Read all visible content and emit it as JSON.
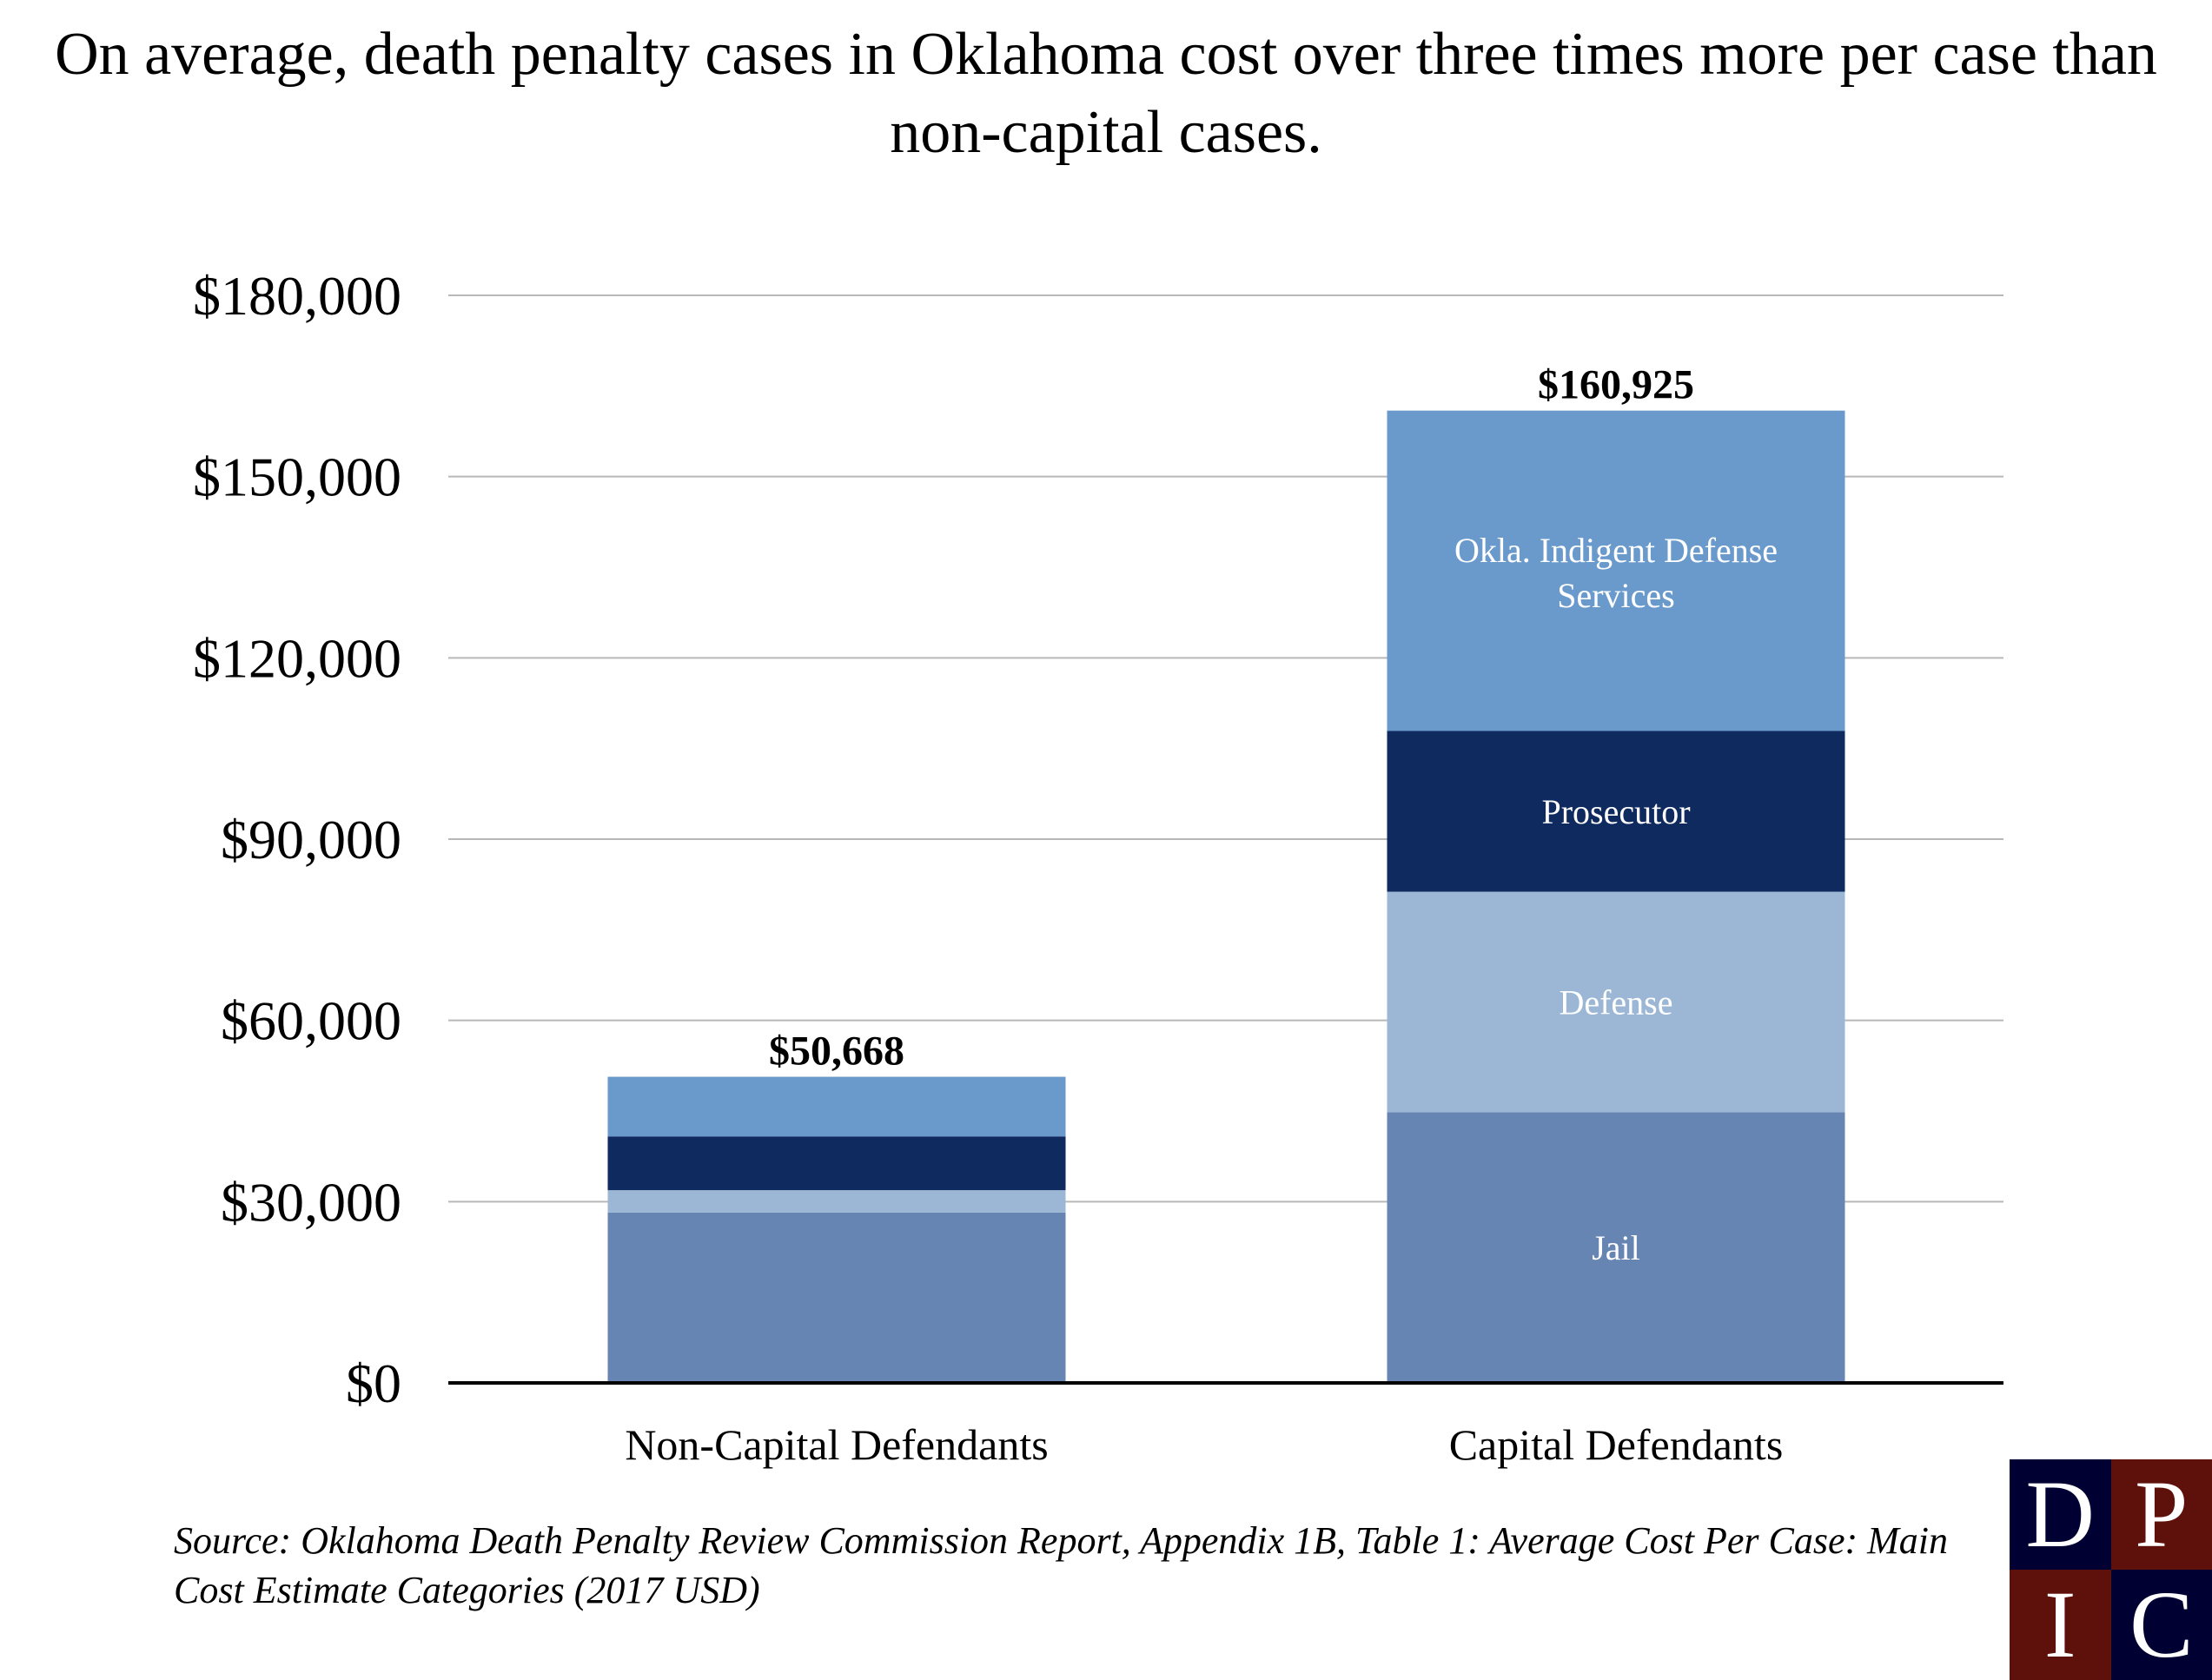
{
  "title": "On average, death penalty cases in Oklahoma cost over three times more per case than non-capital cases.",
  "source": "Source: Oklahoma Death Penalty Review Commission Report, Appendix 1B, Table 1: Average Cost Per Case: Main Cost Estimate Categories (2017 USD)",
  "logo": {
    "letters": [
      "D",
      "P",
      "I",
      "C"
    ],
    "colors": [
      "#000033",
      "#5e110a",
      "#5e110a",
      "#000033"
    ]
  },
  "chart_data": {
    "type": "bar",
    "stacked": true,
    "title": "On average, death penalty cases in Oklahoma cost over three times more per case than non-capital cases.",
    "xlabel": "",
    "ylabel": "",
    "categories": [
      "Non-Capital Defendants",
      "Capital Defendants"
    ],
    "ylim": [
      0,
      180000
    ],
    "yticks": [
      0,
      30000,
      60000,
      90000,
      120000,
      150000,
      180000
    ],
    "ytick_labels": [
      "$0",
      "$30,000",
      "$60,000",
      "$90,000",
      "$120,000",
      "$150,000",
      "$180,000"
    ],
    "grid": true,
    "legend": "none (segment labels inside capital bar)",
    "series": [
      {
        "name": "Jail",
        "color": "#6785b2",
        "values": [
          28200,
          44800
        ]
      },
      {
        "name": "Defense",
        "color": "#9cb7d6",
        "values": [
          3700,
          36500
        ]
      },
      {
        "name": "Prosecutor",
        "color": "#0f2a5f",
        "values": [
          8900,
          26600
        ]
      },
      {
        "name": "Okla. Indigent Defense Services",
        "color": "#6a9acc",
        "values": [
          9868,
          53025
        ]
      }
    ],
    "totals": [
      50668,
      160925
    ],
    "total_labels": [
      "$50,668",
      "$160,925"
    ],
    "segment_labels": {
      "Capital Defendants": [
        "Jail",
        "Defense",
        "Prosecutor",
        "Okla. Indigent Defense Services"
      ]
    }
  }
}
